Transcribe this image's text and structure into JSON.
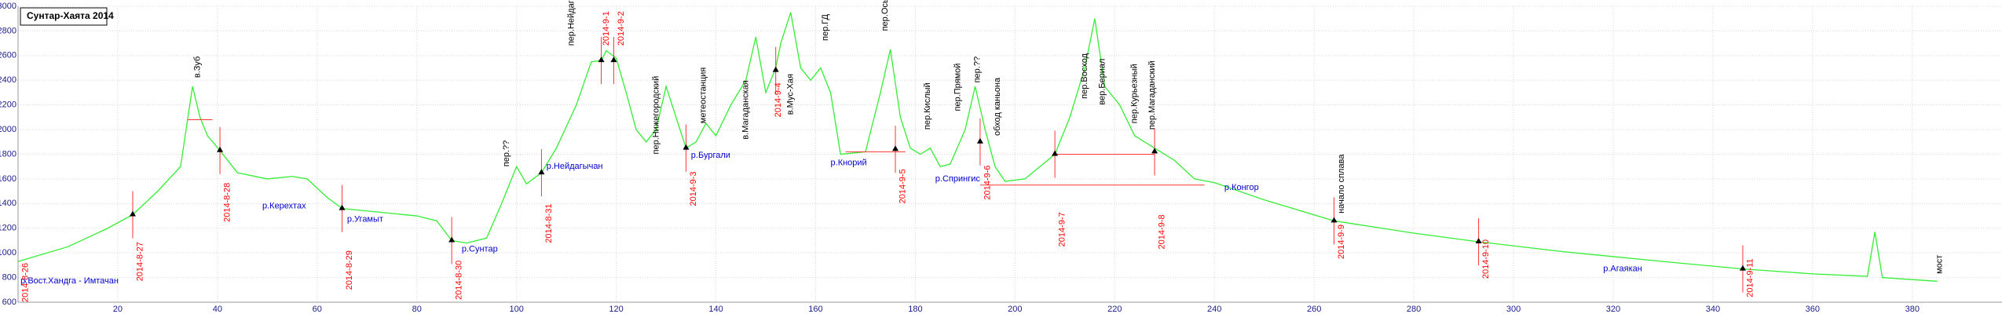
{
  "chart_data": {
    "type": "line",
    "title": "Сунтар-Хаята 2014",
    "xlim": [
      0,
      398
    ],
    "ylim": [
      600,
      3000
    ],
    "xticks": [
      20,
      40,
      60,
      80,
      100,
      120,
      140,
      160,
      180,
      200,
      220,
      240,
      260,
      280,
      300,
      320,
      340,
      360,
      380
    ],
    "yticks": [
      600,
      800,
      1000,
      1200,
      1400,
      1600,
      1800,
      2000,
      2200,
      2400,
      2600,
      2800,
      3000
    ],
    "grid": true,
    "series": [
      {
        "color": "#33ee33",
        "x": [
          0,
          10,
          18,
          23,
          28,
          32.6,
          35,
          36.5,
          38,
          40.5,
          44,
          50,
          55,
          58,
          62,
          65,
          70,
          75,
          80,
          84,
          87,
          90,
          94,
          97,
          100,
          102,
          105,
          108,
          112,
          115,
          117,
          118,
          120,
          122,
          124,
          126,
          128,
          130,
          132,
          134,
          136,
          138,
          140,
          143,
          146,
          148,
          150,
          152,
          153,
          155,
          157,
          159,
          161,
          163,
          165,
          170,
          173,
          175,
          177,
          179,
          181,
          183,
          185,
          187,
          190,
          192,
          194,
          196,
          198,
          202,
          205,
          208,
          211,
          214,
          216,
          218,
          221,
          224,
          228,
          232,
          236,
          240,
          250,
          264,
          280,
          293,
          310,
          330,
          346,
          360,
          371,
          372.5,
          374,
          385
        ],
        "values": [
          930,
          1050,
          1200,
          1310,
          1500,
          1700,
          2350,
          2100,
          1950,
          1830,
          1650,
          1600,
          1620,
          1600,
          1450,
          1360,
          1340,
          1320,
          1300,
          1260,
          1100,
          1080,
          1120,
          1400,
          1700,
          1560,
          1650,
          1850,
          2200,
          2550,
          2560,
          2640,
          2580,
          2300,
          2000,
          1900,
          2000,
          2350,
          2100,
          1850,
          1900,
          2050,
          1950,
          2200,
          2400,
          2750,
          2300,
          2500,
          2700,
          2950,
          2500,
          2400,
          2500,
          2300,
          1800,
          1820,
          2300,
          2650,
          2100,
          1850,
          1800,
          1850,
          1700,
          1720,
          2000,
          2350,
          2000,
          1700,
          1580,
          1600,
          1700,
          1800,
          2100,
          2500,
          2900,
          2350,
          2200,
          1950,
          1850,
          1750,
          1600,
          1570,
          1430,
          1260,
          1160,
          1090,
          1010,
          930,
          870,
          830,
          810,
          1170,
          800,
          770
        ]
      }
    ],
    "markers": [
      {
        "x": 23,
        "y": 1310
      },
      {
        "x": 40.5,
        "y": 1830
      },
      {
        "x": 65,
        "y": 1360
      },
      {
        "x": 87,
        "y": 1100
      },
      {
        "x": 105,
        "y": 1650
      },
      {
        "x": 117,
        "y": 2560
      },
      {
        "x": 119.5,
        "y": 2560
      },
      {
        "x": 134,
        "y": 1850
      },
      {
        "x": 152,
        "y": 2480
      },
      {
        "x": 176,
        "y": 1840
      },
      {
        "x": 193,
        "y": 1900
      },
      {
        "x": 208,
        "y": 1800
      },
      {
        "x": 228,
        "y": 1820
      },
      {
        "x": 264,
        "y": 1260
      },
      {
        "x": 293,
        "y": 1090
      },
      {
        "x": 346,
        "y": 870
      }
    ],
    "segments": [
      {
        "x": [
          34,
          39
        ],
        "y": 2080
      },
      {
        "x": [
          166,
          178
        ],
        "y": 1820
      },
      {
        "x": [
          208,
          228
        ],
        "y": 1800
      },
      {
        "x": [
          193,
          238
        ],
        "y": 1550
      }
    ],
    "annotations": [
      {
        "text": "2014-8-26",
        "x": 1.5,
        "y": 600,
        "color": "red",
        "vertical": true
      },
      {
        "text": "2014-8-27",
        "x": 24.5,
        "y": 770,
        "color": "red",
        "vertical": true
      },
      {
        "text": "2014-8-28",
        "x": 42,
        "y": 1250,
        "color": "red",
        "vertical": true
      },
      {
        "text": "2014-8-29",
        "x": 66.5,
        "y": 700,
        "color": "red",
        "vertical": true
      },
      {
        "text": "2014-8-30",
        "x": 88.5,
        "y": 620,
        "color": "red",
        "vertical": true
      },
      {
        "text": "2014-8-31",
        "x": 106.5,
        "y": 1080,
        "color": "red",
        "vertical": true
      },
      {
        "text": "2014-9-1",
        "x": 118,
        "y": 2680,
        "color": "red",
        "vertical": true
      },
      {
        "text": "2014-9-2",
        "x": 121,
        "y": 2680,
        "color": "red",
        "vertical": true
      },
      {
        "text": "2014-9-3",
        "x": 135.5,
        "y": 1380,
        "color": "red",
        "vertical": true
      },
      {
        "text": "2014-9-4",
        "x": 152.5,
        "y": 2100,
        "color": "red",
        "vertical": true
      },
      {
        "text": "2014-9-5",
        "x": 177.5,
        "y": 1400,
        "color": "red",
        "vertical": true
      },
      {
        "text": "2014-9-6",
        "x": 194.5,
        "y": 1430,
        "color": "red",
        "vertical": true
      },
      {
        "text": "2014-9-7",
        "x": 209.5,
        "y": 1050,
        "color": "red",
        "vertical": true
      },
      {
        "text": "2014-9-8",
        "x": 229.5,
        "y": 1030,
        "color": "red",
        "vertical": true
      },
      {
        "text": "2014-9-9",
        "x": 265.5,
        "y": 950,
        "color": "red",
        "vertical": true
      },
      {
        "text": "2014-9-10",
        "x": 294.5,
        "y": 790,
        "color": "red",
        "vertical": true
      },
      {
        "text": "2014-9-11",
        "x": 347.5,
        "y": 640,
        "color": "red",
        "vertical": true
      },
      {
        "text": "в.Зуб",
        "x": 36,
        "y": 2420,
        "color": "black",
        "vertical": true
      },
      {
        "text": "пер.??",
        "x": 98,
        "y": 1700,
        "color": "black",
        "vertical": true
      },
      {
        "text": "пер.Нейдагычан",
        "x": 111,
        "y": 2680,
        "color": "black",
        "vertical": true
      },
      {
        "text": "пер.Нижегородский",
        "x": 128,
        "y": 1800,
        "color": "black",
        "vertical": true
      },
      {
        "text": "метеостанция",
        "x": 137.5,
        "y": 2050,
        "color": "black",
        "vertical": true
      },
      {
        "text": "в.Магаданская",
        "x": 146,
        "y": 1920,
        "color": "black",
        "vertical": true
      },
      {
        "text": "в.Мус-Хая",
        "x": 155,
        "y": 2120,
        "color": "black",
        "vertical": true
      },
      {
        "text": "пер.ГД",
        "x": 162,
        "y": 2720,
        "color": "black",
        "vertical": true
      },
      {
        "text": "пер.Осыпной",
        "x": 174,
        "y": 2800,
        "color": "black",
        "vertical": true
      },
      {
        "text": "пер.Кислый",
        "x": 182.5,
        "y": 2000,
        "color": "black",
        "vertical": true
      },
      {
        "text": "пер.Прямой",
        "x": 188.5,
        "y": 2150,
        "color": "black",
        "vertical": true
      },
      {
        "text": "пер.??",
        "x": 192.5,
        "y": 2380,
        "color": "black",
        "vertical": true
      },
      {
        "text": "обход каньона",
        "x": 196.5,
        "y": 1950,
        "color": "black",
        "vertical": true
      },
      {
        "text": "пер.Восход",
        "x": 214,
        "y": 2250,
        "color": "black",
        "vertical": true
      },
      {
        "text": "вер.Бериал",
        "x": 217.5,
        "y": 2200,
        "color": "black",
        "vertical": true
      },
      {
        "text": "пер.Курьезный",
        "x": 224,
        "y": 2050,
        "color": "black",
        "vertical": true
      },
      {
        "text": "пер.Магаданский",
        "x": 227.5,
        "y": 2000,
        "color": "black",
        "vertical": true
      },
      {
        "text": "начало сплава",
        "x": 265.5,
        "y": 1320,
        "color": "black",
        "vertical": true
      },
      {
        "text": "мост",
        "x": 385.5,
        "y": 830,
        "color": "black",
        "vertical": true
      },
      {
        "text": "р.Вост.Хандга - Имтачан",
        "x": 0.5,
        "y": 770,
        "color": "#0000cc",
        "vertical": false
      },
      {
        "text": "р.Керехтах",
        "x": 49,
        "y": 1380,
        "color": "#0000cc",
        "vertical": false
      },
      {
        "text": "р.Угамыт",
        "x": 66,
        "y": 1270,
        "color": "#0000cc",
        "vertical": false
      },
      {
        "text": "р.Сунтар",
        "x": 89,
        "y": 1030,
        "color": "#0000cc",
        "vertical": false
      },
      {
        "text": "р.Нейдагычан",
        "x": 106,
        "y": 1700,
        "color": "#0000cc",
        "vertical": false
      },
      {
        "text": "р.Бургали",
        "x": 135,
        "y": 1790,
        "color": "#0000cc",
        "vertical": false
      },
      {
        "text": "р.Кнорий",
        "x": 163,
        "y": 1730,
        "color": "#0000cc",
        "vertical": false
      },
      {
        "text": "р.Спрингис",
        "x": 184,
        "y": 1600,
        "color": "#0000cc",
        "vertical": false
      },
      {
        "text": "р.Конгор",
        "x": 242,
        "y": 1530,
        "color": "#0000cc",
        "vertical": false
      },
      {
        "text": "р.Агаякан",
        "x": 318,
        "y": 870,
        "color": "#0000cc",
        "vertical": false
      }
    ]
  }
}
